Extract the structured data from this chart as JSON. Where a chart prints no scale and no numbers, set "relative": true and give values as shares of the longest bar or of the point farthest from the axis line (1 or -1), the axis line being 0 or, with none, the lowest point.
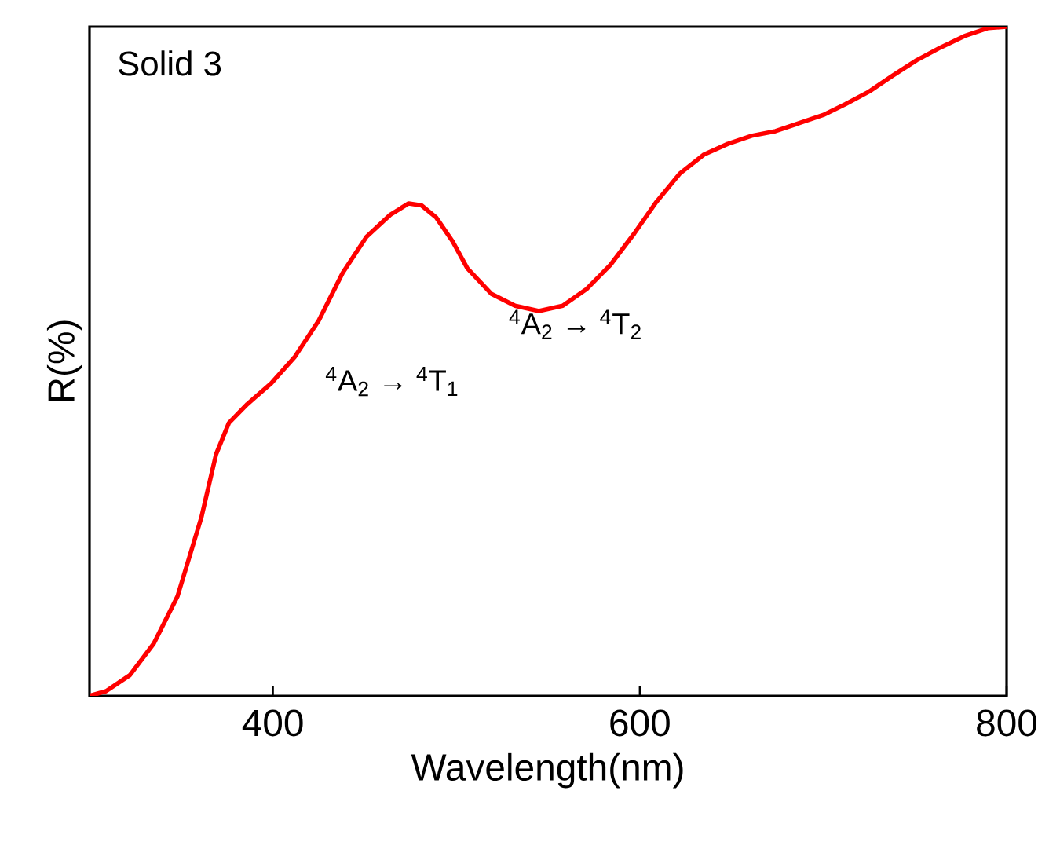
{
  "chart_data": {
    "type": "line",
    "title": "Solid 3",
    "xlabel": "Wavelength(nm)",
    "ylabel": "R(%)",
    "relative": true,
    "tick_labels": "x",
    "annotations": [
      "$^{4}$A$_{2}$ → $^{4}$T$_{1}$",
      "$^{4}$A$_{2}$ → $^{4}$T$_{2}$"
    ],
    "xlim": [
      300,
      800
    ],
    "xticks": [
      400,
      600,
      800
    ],
    "x": [
      300,
      309,
      322,
      335,
      348,
      361,
      369,
      376,
      386,
      399,
      412,
      425,
      438,
      451,
      464,
      474,
      481,
      489,
      498,
      506,
      519,
      532,
      545,
      558,
      571,
      584,
      597,
      609,
      622,
      635,
      648,
      661,
      674,
      687,
      700,
      712,
      725,
      738,
      751,
      764,
      777,
      790,
      800
    ],
    "series": [
      {
        "color": "#ff0000",
        "values": [
          0,
          0.007,
          0.031,
          0.078,
          0.149,
          0.267,
          0.361,
          0.408,
          0.436,
          0.467,
          0.507,
          0.561,
          0.632,
          0.686,
          0.719,
          0.736,
          0.733,
          0.715,
          0.679,
          0.639,
          0.601,
          0.583,
          0.575,
          0.583,
          0.608,
          0.644,
          0.691,
          0.738,
          0.781,
          0.809,
          0.825,
          0.837,
          0.844,
          0.856,
          0.868,
          0.884,
          0.903,
          0.927,
          0.95,
          0.969,
          0.986,
          0.998,
          1
        ]
      }
    ]
  }
}
